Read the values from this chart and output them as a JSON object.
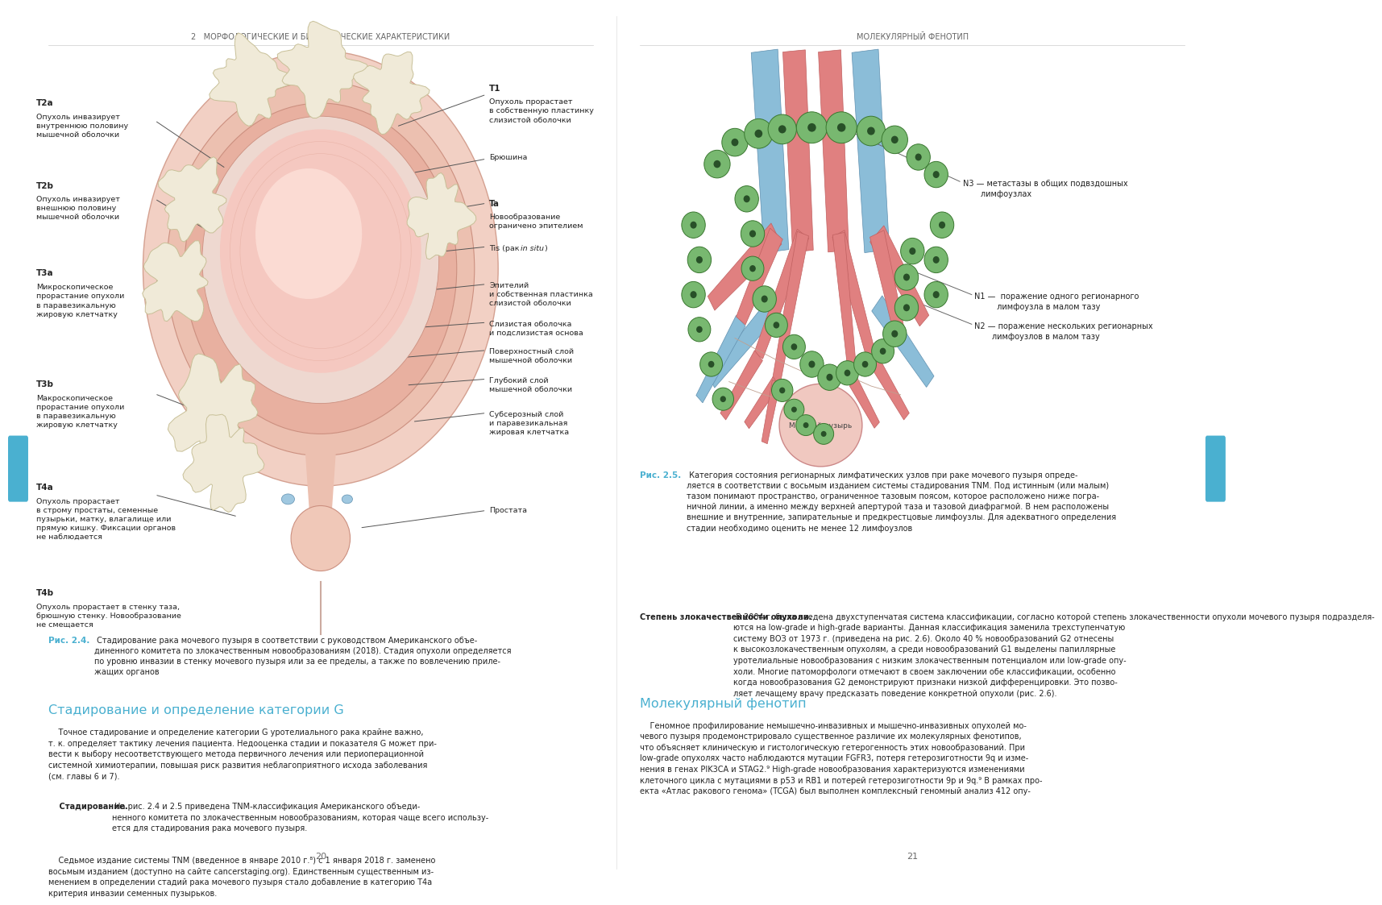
{
  "background_color": "#ffffff",
  "left_header": "2   МОРФОЛОГИЧЕСКИЕ И БИОЛОГИЧЕСКИЕ ХАРАКТЕРИСТИКИ",
  "right_header": "МОЛЕКУЛЯРНЫЙ ФЕНОТИП",
  "page_left": "20",
  "page_right": "21",
  "fig24_caption_bold": "Рис. 2.4.",
  "fig24_caption_rest": " Стадирование рака мочевого пузыря в соответствии с руководством Американского объе-\nдиненного комитета по злокачественным новообразованиям (2018). Стадия опухоли определяется\nпо уровню инвазии в стенку мочевого пузыря или за ее пределы, а также по вовлечению приле-\nжащих органов",
  "fig25_caption_bold": "Рис. 2.5.",
  "fig25_caption_rest": " Категория состояния регионарных лимфатических узлов при раке мочевого пузыря опреде-\nляется в соответствии с восьмым изданием системы стадирования TNM. Под истинным (или малым)\nтазом понимают пространство, ограниченное тазовым поясом, которое расположено ниже погра-\nничной линии, а именно между верхней апертурой таза и тазовой диафрагмой. В нем расположены\nвнешние и внутренние, запирательные и предкрестцовые лимфоузлы. Для адекватного определения\nстадии необходимо оценить не менее 12 лимфоузлов",
  "section_title_left": "Стадирование и определение категории G",
  "section_body_left_p1": "    Точное стадирование и определение категории G уротелиального рака крайне важно,\nт. к. определяет тактику лечения пациента. Недооценка стадии и показателя G может при-\nвести к выбору несоответствующего метода первичного лечения или периоперационной\nсистемной химиотерапии, повышая риск развития неблагоприятного исхода заболевания\n(см. главы 6 и 7).",
  "section_body_left_p2_bold": "    Стадирование.",
  "section_body_left_p2_rest": " На рис. 2.4 и 2.5 приведена TNM-классификация Американского объеди-\nненного комитета по злокачественным новообразованиям, которая чаще всего использу-\nется для стадирования рака мочевого пузыря.",
  "section_body_left_p3": "    Седьмое издание системы TNM (введенное в январе 2010 г.⁸) с 1 января 2018 г. заменено\nвосьмым изданием (доступно на сайте cancerstaging.org). Единственным существенным из-\nменением в определении стадий рака мочевого пузыря стало добавление в категорию T4a\nкритерия инвазии семенных пузырьков.",
  "section_title_right": "Молекулярный фенотип",
  "section_body_right": "    Геномное профилирование немышечно-инвазивных и мышечно-инвазивных опухолей мо-\nчевого пузыря продемонстрировало существенное различие их молекулярных фенотипов,\nчто объясняет клиническую и гистологическую гетерогенность этих новообразований. При\nlow-grade опухолях часто наблюдаются мутации FGFR3, потеря гетерозиготности 9q и изме-\nнения в генах PIK3CA и STAG2.⁹ High-grade новообразования характеризуются изменениями\nклеточного цикла с мутациями в p53 и RB1 и потерей гетерозиготности 9p и 9q.⁹ В рамках про-\nекта «Атлас ракового генома» (TCGA) был выполнен комплексный геномный анализ 412 опу-",
  "right_section_bold": "Степень злокачественности опухоли.",
  "right_section_rest": " В 2004 г. была введена двухступенчатая система классификации, согласно которой степень злокачественности опухоли мочевого пузыря подразделя-\nются на low-grade и high-grade варианты. Данная классификация заменила трехступенчатую\nсистему ВОЗ от 1973 г. (приведена на рис. 2.6). Около 40 % новообразований G2 отнесены\nк высокозлокачественным опухолям, а среди новообразований G1 выделены папиллярные\nуротелиальные новообразования с низким злокачественным потенциалом или low-grade опу-\nхоли. Многие патоморфологи отмечают в своем заключении обе классификации, особенно\nкогда новообразования G2 демонстрируют признаки низкой дифференцировки. Это позво-\nляет лечащему врачу предсказать поведение конкретной опухоли (рис. 2.6).",
  "caption_color": "#4ab0d0",
  "section_title_color": "#4ab0d0",
  "line_color": "#666666",
  "text_color": "#222222",
  "header_color": "#666666"
}
